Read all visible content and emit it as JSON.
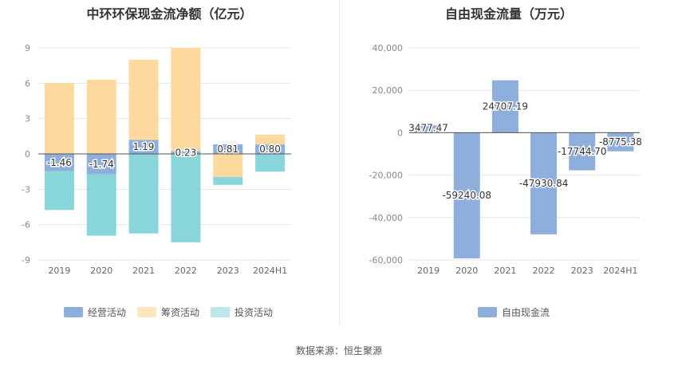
{
  "chart_data": [
    {
      "type": "bar",
      "stacked": true,
      "title": "中环环保现金流净额（亿元）",
      "categories": [
        "2019",
        "2020",
        "2021",
        "2022",
        "2023",
        "2024H1"
      ],
      "yticks": [
        "9",
        "6",
        "3",
        "0",
        "-3",
        "-6",
        "-9"
      ],
      "ylim": [
        -9,
        9
      ],
      "grid": true,
      "legend_position": "bottom",
      "series": [
        {
          "name": "经营活动",
          "color": "#8eaedc",
          "values": [
            -1.46,
            -1.74,
            1.19,
            0.23,
            0.81,
            0.8
          ],
          "labels": [
            "-1.46",
            "-1.74",
            "1.19",
            "0.23",
            "0.81",
            "0.80"
          ]
        },
        {
          "name": "筹资活动",
          "color": "#fdd99d",
          "values": [
            6.0,
            6.3,
            6.8,
            8.77,
            -1.95,
            0.83
          ]
        },
        {
          "name": "投资活动",
          "color": "#88d6da",
          "values": [
            -3.3,
            -5.2,
            -6.75,
            -7.5,
            -0.68,
            -1.5
          ]
        }
      ]
    },
    {
      "type": "bar",
      "title": "自由现金流量（万元）",
      "categories": [
        "2019",
        "2020",
        "2021",
        "2022",
        "2023",
        "2024H1"
      ],
      "yticks": [
        "40,000",
        "20,000",
        "0",
        "-20,000",
        "-40,000",
        "-60,000"
      ],
      "ylim": [
        -60000,
        40000
      ],
      "grid": true,
      "legend_position": "bottom",
      "series": [
        {
          "name": "自由现金流",
          "color": "#8eaedc",
          "values": [
            3477.47,
            -59240.08,
            24707.19,
            -47930.84,
            -17744.7,
            -8775.38
          ],
          "labels": [
            "3477.47",
            "-59240.08",
            "24707.19",
            "-47930.84",
            "-17744.70",
            "-8775.38"
          ]
        }
      ]
    }
  ],
  "footer": "数据来源：恒生聚源"
}
